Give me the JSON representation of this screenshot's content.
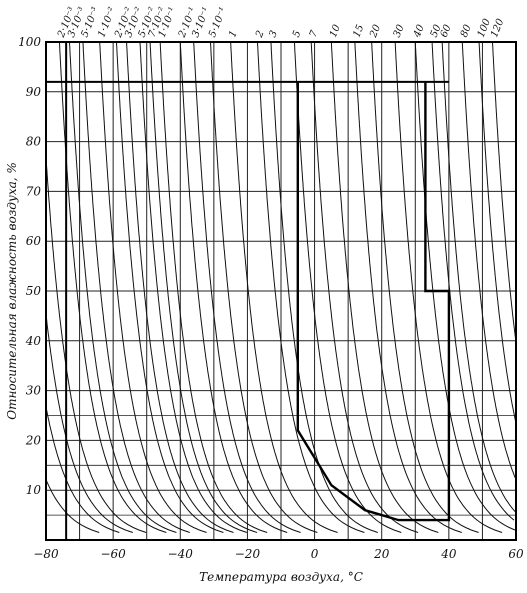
{
  "chart_data": {
    "type": "line",
    "title": "",
    "xlabel": "Температура воздуха, °С",
    "ylabel": "Относительная влажность воздуха, %",
    "xlim": [
      -80,
      60
    ],
    "ylim": [
      0,
      100
    ],
    "x_ticks": [
      "-80",
      "-60",
      "-40",
      "-20",
      "0",
      "20",
      "40",
      "60"
    ],
    "y_ticks": [
      "10",
      "20",
      "30",
      "40",
      "50",
      "60",
      "70",
      "80",
      "90",
      "100"
    ],
    "grid": true,
    "curve_labels": [
      "2·10⁻³",
      "3·10⁻³",
      "5·10⁻³",
      "1·10⁻²",
      "2·10⁻²",
      "3·10⁻²",
      "5·10⁻²",
      "7·10⁻²",
      "1·10⁻¹",
      "2·10⁻¹",
      "3·10⁻¹",
      "5·10⁻¹",
      "1",
      "2",
      "3",
      "5",
      "7",
      "10",
      "15",
      "20",
      "30",
      "40",
      "50",
      "60",
      "80",
      "100",
      "120"
    ],
    "series": [
      {
        "label": "2·10⁻³",
        "x_at_100": -76
      },
      {
        "label": "3·10⁻³",
        "x_at_100": -73
      },
      {
        "label": "5·10⁻³",
        "x_at_100": -69
      },
      {
        "label": "1·10⁻²",
        "x_at_100": -64
      },
      {
        "label": "2·10⁻²",
        "x_at_100": -59
      },
      {
        "label": "3·10⁻²",
        "x_at_100": -56
      },
      {
        "label": "5·10⁻²",
        "x_at_100": -52
      },
      {
        "label": "7·10⁻²",
        "x_at_100": -49
      },
      {
        "label": "1·10⁻¹",
        "x_at_100": -46
      },
      {
        "label": "2·10⁻¹",
        "x_at_100": -40
      },
      {
        "label": "3·10⁻¹",
        "x_at_100": -36
      },
      {
        "label": "5·10⁻¹",
        "x_at_100": -31
      },
      {
        "label": "1",
        "x_at_100": -25
      },
      {
        "label": "2",
        "x_at_100": -17
      },
      {
        "label": "3",
        "x_at_100": -13
      },
      {
        "label": "5",
        "x_at_100": -6
      },
      {
        "label": "7",
        "x_at_100": -1
      },
      {
        "label": "10",
        "x_at_100": 5
      },
      {
        "label": "15",
        "x_at_100": 12
      },
      {
        "label": "20",
        "x_at_100": 17
      },
      {
        "label": "30",
        "x_at_100": 24
      },
      {
        "label": "40",
        "x_at_100": 30
      },
      {
        "label": "50",
        "x_at_100": 35
      },
      {
        "label": "60",
        "x_at_100": 38
      },
      {
        "label": "80",
        "x_at_100": 44
      },
      {
        "label": "100",
        "x_at_100": 49
      },
      {
        "label": "120",
        "x_at_100": 53
      }
    ],
    "highlight_path": [
      {
        "x": -5,
        "y": 92
      },
      {
        "x": -5,
        "y": 22
      },
      {
        "x": 5,
        "y": 11
      },
      {
        "x": 15,
        "y": 6
      },
      {
        "x": 25,
        "y": 4
      },
      {
        "x": 40,
        "y": 4
      },
      {
        "x": 40,
        "y": 50
      },
      {
        "x": 33,
        "y": 50
      },
      {
        "x": 33,
        "y": 92
      }
    ]
  }
}
